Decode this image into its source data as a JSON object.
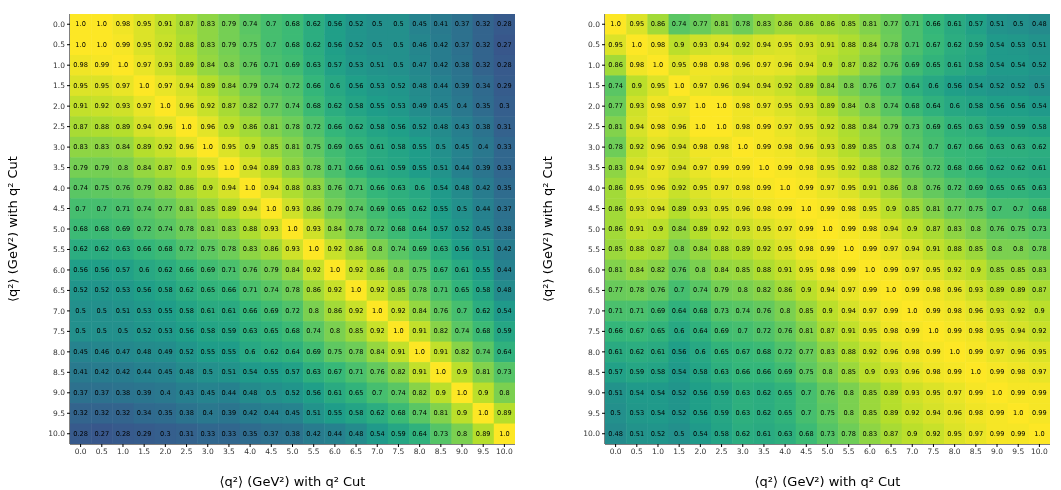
{
  "chart_data": [
    {
      "type": "heatmap",
      "xlabel": "⟨q²⟩ (GeV²) with q² Cut",
      "ylabel": "⟨q²⟩ (GeV²) with q² Cut",
      "data_labels": true,
      "categories": [
        "0.0",
        "0.5",
        "1.0",
        "1.5",
        "2.0",
        "2.5",
        "3.0",
        "3.5",
        "4.0",
        "4.5",
        "5.0",
        "5.5",
        "6.0",
        "6.5",
        "7.0",
        "7.5",
        "8.0",
        "8.5",
        "9.0",
        "9.5",
        "10.0"
      ],
      "y_categories": [
        "0.0",
        "0.5",
        "1.0",
        "1.5",
        "2.0",
        "2.5",
        "3.0",
        "3.5",
        "4.0",
        "4.5",
        "5.0",
        "5.5",
        "6.0",
        "6.5",
        "7.0",
        "7.5",
        "8.0",
        "8.5",
        "9.0",
        "9.5",
        "10.0"
      ],
      "cells": [
        [
          1.0,
          1.0,
          0.98,
          0.95,
          0.91,
          0.87,
          0.83,
          0.79,
          0.74,
          0.7,
          0.68,
          0.62,
          0.56,
          0.52,
          0.5,
          0.5,
          0.45,
          0.41,
          0.37,
          0.32,
          0.28
        ],
        [
          1.0,
          1.0,
          0.99,
          0.95,
          0.92,
          0.88,
          0.83,
          0.79,
          0.75,
          0.7,
          0.68,
          0.62,
          0.56,
          0.52,
          0.5,
          0.5,
          0.46,
          0.42,
          0.37,
          0.32,
          0.27
        ],
        [
          0.98,
          0.99,
          1.0,
          0.97,
          0.93,
          0.89,
          0.84,
          0.8,
          0.76,
          0.71,
          0.69,
          0.63,
          0.57,
          0.53,
          0.51,
          0.5,
          0.47,
          0.42,
          0.38,
          0.32,
          0.28
        ],
        [
          0.95,
          0.95,
          0.97,
          1.0,
          0.97,
          0.94,
          0.89,
          0.84,
          0.79,
          0.74,
          0.72,
          0.66,
          0.6,
          0.56,
          0.53,
          0.52,
          0.48,
          0.44,
          0.39,
          0.34,
          0.29
        ],
        [
          0.91,
          0.92,
          0.93,
          0.97,
          1.0,
          0.96,
          0.92,
          0.87,
          0.82,
          0.77,
          0.74,
          0.68,
          0.62,
          0.58,
          0.55,
          0.53,
          0.49,
          0.45,
          0.4,
          0.35,
          0.3
        ],
        [
          0.87,
          0.88,
          0.89,
          0.94,
          0.96,
          1.0,
          0.96,
          0.9,
          0.86,
          0.81,
          0.78,
          0.72,
          0.66,
          0.62,
          0.58,
          0.56,
          0.52,
          0.48,
          0.43,
          0.38,
          0.31
        ],
        [
          0.83,
          0.83,
          0.84,
          0.89,
          0.92,
          0.96,
          1.0,
          0.95,
          0.9,
          0.85,
          0.81,
          0.75,
          0.69,
          0.65,
          0.61,
          0.58,
          0.55,
          0.5,
          0.45,
          0.4,
          0.33
        ],
        [
          0.79,
          0.79,
          0.8,
          0.84,
          0.87,
          0.9,
          0.95,
          1.0,
          0.94,
          0.89,
          0.83,
          0.78,
          0.71,
          0.66,
          0.61,
          0.59,
          0.55,
          0.51,
          0.44,
          0.39,
          0.33
        ],
        [
          0.74,
          0.75,
          0.76,
          0.79,
          0.82,
          0.86,
          0.9,
          0.94,
          1.0,
          0.94,
          0.88,
          0.83,
          0.76,
          0.71,
          0.66,
          0.63,
          0.6,
          0.54,
          0.48,
          0.42,
          0.35
        ],
        [
          0.7,
          0.7,
          0.71,
          0.74,
          0.77,
          0.81,
          0.85,
          0.89,
          0.94,
          1.0,
          0.93,
          0.86,
          0.79,
          0.74,
          0.69,
          0.65,
          0.62,
          0.55,
          0.5,
          0.44,
          0.37
        ],
        [
          0.68,
          0.68,
          0.69,
          0.72,
          0.74,
          0.78,
          0.81,
          0.83,
          0.88,
          0.93,
          1.0,
          0.93,
          0.84,
          0.78,
          0.72,
          0.68,
          0.64,
          0.57,
          0.52,
          0.45,
          0.38
        ],
        [
          0.62,
          0.62,
          0.63,
          0.66,
          0.68,
          0.72,
          0.75,
          0.78,
          0.83,
          0.86,
          0.93,
          1.0,
          0.92,
          0.86,
          0.8,
          0.74,
          0.69,
          0.63,
          0.56,
          0.51,
          0.42
        ],
        [
          0.56,
          0.56,
          0.57,
          0.6,
          0.62,
          0.66,
          0.69,
          0.71,
          0.76,
          0.79,
          0.84,
          0.92,
          1.0,
          0.92,
          0.86,
          0.8,
          0.75,
          0.67,
          0.61,
          0.55,
          0.44
        ],
        [
          0.52,
          0.52,
          0.53,
          0.56,
          0.58,
          0.62,
          0.65,
          0.66,
          0.71,
          0.74,
          0.78,
          0.86,
          0.92,
          1.0,
          0.92,
          0.85,
          0.78,
          0.71,
          0.65,
          0.58,
          0.48
        ],
        [
          0.5,
          0.5,
          0.51,
          0.53,
          0.55,
          0.58,
          0.61,
          0.61,
          0.66,
          0.69,
          0.72,
          0.8,
          0.86,
          0.92,
          1.0,
          0.92,
          0.84,
          0.76,
          0.7,
          0.62,
          0.54
        ],
        [
          0.5,
          0.5,
          0.5,
          0.52,
          0.53,
          0.56,
          0.58,
          0.59,
          0.63,
          0.65,
          0.68,
          0.74,
          0.8,
          0.85,
          0.92,
          1.0,
          0.91,
          0.82,
          0.74,
          0.68,
          0.59
        ],
        [
          0.45,
          0.46,
          0.47,
          0.48,
          0.49,
          0.52,
          0.55,
          0.55,
          0.6,
          0.62,
          0.64,
          0.69,
          0.75,
          0.78,
          0.84,
          0.91,
          1.0,
          0.91,
          0.82,
          0.74,
          0.64
        ],
        [
          0.41,
          0.42,
          0.42,
          0.44,
          0.45,
          0.48,
          0.5,
          0.51,
          0.54,
          0.55,
          0.57,
          0.63,
          0.67,
          0.71,
          0.76,
          0.82,
          0.91,
          1.0,
          0.9,
          0.81,
          0.73
        ],
        [
          0.37,
          0.37,
          0.38,
          0.39,
          0.4,
          0.43,
          0.45,
          0.44,
          0.48,
          0.5,
          0.52,
          0.56,
          0.61,
          0.65,
          0.7,
          0.74,
          0.82,
          0.9,
          1.0,
          0.9,
          0.8
        ],
        [
          0.32,
          0.32,
          0.32,
          0.34,
          0.35,
          0.38,
          0.4,
          0.39,
          0.42,
          0.44,
          0.45,
          0.51,
          0.55,
          0.58,
          0.62,
          0.68,
          0.74,
          0.81,
          0.9,
          1.0,
          0.89
        ],
        [
          0.28,
          0.27,
          0.28,
          0.29,
          0.3,
          0.31,
          0.33,
          0.33,
          0.35,
          0.37,
          0.38,
          0.42,
          0.44,
          0.48,
          0.54,
          0.59,
          0.64,
          0.73,
          0.8,
          0.89,
          1.0
        ]
      ],
      "cell_labels": [
        [
          "1.0",
          "1.0",
          "0.98",
          "0.95",
          "0.91",
          "0.87",
          "0.83",
          "0.79",
          "0.74",
          "0.7",
          "0.68",
          "0.62",
          "0.56",
          "0.52",
          "0.5",
          "0.5",
          "0.45",
          "0.41",
          "0.37",
          "0.32",
          "0.28"
        ],
        [
          "1.0",
          "1.0",
          "0.99",
          "0.95",
          "0.92",
          "0.88",
          "0.83",
          "0.79",
          "0.75",
          "0.7",
          "0.68",
          "0.62",
          "0.56",
          "0.52",
          "0.5",
          "0.5",
          "0.46",
          "0.42",
          "0.37",
          "0.32",
          "0.27"
        ],
        [
          "0.98",
          "0.99",
          "1.0",
          "0.97",
          "0.93",
          "0.89",
          "0.84",
          "0.8",
          "0.76",
          "0.71",
          "0.69",
          "0.63",
          "0.57",
          "0.53",
          "0.51",
          "0.5",
          "0.47",
          "0.42",
          "0.38",
          "0.32",
          "0.28"
        ],
        [
          "0.95",
          "0.95",
          "0.97",
          "1.0",
          "0.97",
          "0.94",
          "0.89",
          "0.84",
          "0.79",
          "0.74",
          "0.72",
          "0.66",
          "0.6",
          "0.56",
          "0.53",
          "0.52",
          "0.48",
          "0.44",
          "0.39",
          "0.34",
          "0.29"
        ],
        [
          "0.91",
          "0.92",
          "0.93",
          "0.97",
          "1.0",
          "0.96",
          "0.92",
          "0.87",
          "0.82",
          "0.77",
          "0.74",
          "0.68",
          "0.62",
          "0.58",
          "0.55",
          "0.53",
          "0.49",
          "0.45",
          "0.4",
          "0.35",
          "0.3"
        ],
        [
          "0.87",
          "0.88",
          "0.89",
          "0.94",
          "0.96",
          "1.0",
          "0.96",
          "0.9",
          "0.86",
          "0.81",
          "0.78",
          "0.72",
          "0.66",
          "0.62",
          "0.58",
          "0.56",
          "0.52",
          "0.48",
          "0.43",
          "0.38",
          "0.31"
        ],
        [
          "0.83",
          "0.83",
          "0.84",
          "0.89",
          "0.92",
          "0.96",
          "1.0",
          "0.95",
          "0.9",
          "0.85",
          "0.81",
          "0.75",
          "0.69",
          "0.65",
          "0.61",
          "0.58",
          "0.55",
          "0.5",
          "0.45",
          "0.4",
          "0.33"
        ],
        [
          "0.79",
          "0.79",
          "0.8",
          "0.84",
          "0.87",
          "0.9",
          "0.95",
          "1.0",
          "0.94",
          "0.89",
          "0.83",
          "0.78",
          "0.71",
          "0.66",
          "0.61",
          "0.59",
          "0.55",
          "0.51",
          "0.44",
          "0.39",
          "0.33"
        ],
        [
          "0.74",
          "0.75",
          "0.76",
          "0.79",
          "0.82",
          "0.86",
          "0.9",
          "0.94",
          "1.0",
          "0.94",
          "0.88",
          "0.83",
          "0.76",
          "0.71",
          "0.66",
          "0.63",
          "0.6",
          "0.54",
          "0.48",
          "0.42",
          "0.35"
        ],
        [
          "0.7",
          "0.7",
          "0.71",
          "0.74",
          "0.77",
          "0.81",
          "0.85",
          "0.89",
          "0.94",
          "1.0",
          "0.93",
          "0.86",
          "0.79",
          "0.74",
          "0.69",
          "0.65",
          "0.62",
          "0.55",
          "0.5",
          "0.44",
          "0.37"
        ],
        [
          "0.68",
          "0.68",
          "0.69",
          "0.72",
          "0.74",
          "0.78",
          "0.81",
          "0.83",
          "0.88",
          "0.93",
          "1.0",
          "0.93",
          "0.84",
          "0.78",
          "0.72",
          "0.68",
          "0.64",
          "0.57",
          "0.52",
          "0.45",
          "0.38"
        ],
        [
          "0.62",
          "0.62",
          "0.63",
          "0.66",
          "0.68",
          "0.72",
          "0.75",
          "0.78",
          "0.83",
          "0.86",
          "0.93",
          "1.0",
          "0.92",
          "0.86",
          "0.8",
          "0.74",
          "0.69",
          "0.63",
          "0.56",
          "0.51",
          "0.42"
        ],
        [
          "0.56",
          "0.56",
          "0.57",
          "0.6",
          "0.62",
          "0.66",
          "0.69",
          "0.71",
          "0.76",
          "0.79",
          "0.84",
          "0.92",
          "1.0",
          "0.92",
          "0.86",
          "0.8",
          "0.75",
          "0.67",
          "0.61",
          "0.55",
          "0.44"
        ],
        [
          "0.52",
          "0.52",
          "0.53",
          "0.56",
          "0.58",
          "0.62",
          "0.65",
          "0.66",
          "0.71",
          "0.74",
          "0.78",
          "0.86",
          "0.92",
          "1.0",
          "0.92",
          "0.85",
          "0.78",
          "0.71",
          "0.65",
          "0.58",
          "0.48"
        ],
        [
          "0.5",
          "0.5",
          "0.51",
          "0.53",
          "0.55",
          "0.58",
          "0.61",
          "0.61",
          "0.66",
          "0.69",
          "0.72",
          "0.8",
          "0.86",
          "0.92",
          "1.0",
          "0.92",
          "0.84",
          "0.76",
          "0.7",
          "0.62",
          "0.54"
        ],
        [
          "0.5",
          "0.5",
          "0.5",
          "0.52",
          "0.53",
          "0.56",
          "0.58",
          "0.59",
          "0.63",
          "0.65",
          "0.68",
          "0.74",
          "0.8",
          "0.85",
          "0.92",
          "1.0",
          "0.91",
          "0.82",
          "0.74",
          "0.68",
          "0.59"
        ],
        [
          "0.45",
          "0.46",
          "0.47",
          "0.48",
          "0.49",
          "0.52",
          "0.55",
          "0.55",
          "0.6",
          "0.62",
          "0.64",
          "0.69",
          "0.75",
          "0.78",
          "0.84",
          "0.91",
          "1.0",
          "0.91",
          "0.82",
          "0.74",
          "0.64"
        ],
        [
          "0.41",
          "0.42",
          "0.42",
          "0.44",
          "0.45",
          "0.48",
          "0.5",
          "0.51",
          "0.54",
          "0.55",
          "0.57",
          "0.63",
          "0.67",
          "0.71",
          "0.76",
          "0.82",
          "0.91",
          "1.0",
          "0.9",
          "0.81",
          "0.73"
        ],
        [
          "0.37",
          "0.37",
          "0.38",
          "0.39",
          "0.4",
          "0.43",
          "0.45",
          "0.44",
          "0.48",
          "0.5",
          "0.52",
          "0.56",
          "0.61",
          "0.65",
          "0.7",
          "0.74",
          "0.82",
          "0.9",
          "1.0",
          "0.9",
          "0.8"
        ],
        [
          "0.32",
          "0.32",
          "0.32",
          "0.34",
          "0.35",
          "0.38",
          "0.4",
          "0.39",
          "0.42",
          "0.44",
          "0.45",
          "0.51",
          "0.55",
          "0.58",
          "0.62",
          "0.68",
          "0.74",
          "0.81",
          "0.9",
          "1.0",
          "0.89"
        ],
        [
          "0.28",
          "0.27",
          "0.28",
          "0.29",
          "0.3",
          "0.31",
          "0.33",
          "0.33",
          "0.35",
          "0.37",
          "0.38",
          "0.42",
          "0.44",
          "0.48",
          "0.54",
          "0.59",
          "0.64",
          "0.73",
          "0.8",
          "0.89",
          "1.0"
        ]
      ]
    },
    {
      "type": "heatmap",
      "xlabel": "⟨q²⟩ (GeV²) with q² Cut",
      "ylabel": "⟨q²⟩ (GeV²) with q² Cut",
      "data_labels": true,
      "categories": [
        "0.0",
        "0.5",
        "1.0",
        "1.5",
        "2.0",
        "2.5",
        "3.0",
        "3.5",
        "4.0",
        "4.5",
        "5.0",
        "5.5",
        "6.0",
        "6.5",
        "7.0",
        "7.5",
        "8.0",
        "8.5",
        "9.0",
        "9.5",
        "10.0"
      ],
      "y_categories": [
        "0.0",
        "0.5",
        "1.0",
        "1.5",
        "2.0",
        "2.5",
        "3.0",
        "3.5",
        "4.0",
        "4.5",
        "5.0",
        "5.5",
        "6.0",
        "6.5",
        "7.0",
        "7.5",
        "8.0",
        "8.5",
        "9.0",
        "9.5",
        "10.0"
      ],
      "cells": [
        [
          1.0,
          0.95,
          0.86,
          0.74,
          0.77,
          0.81,
          0.78,
          0.83,
          0.86,
          0.86,
          0.86,
          0.85,
          0.81,
          0.77,
          0.71,
          0.66,
          0.61,
          0.57,
          0.51,
          0.5,
          0.48
        ],
        [
          0.95,
          1.0,
          0.98,
          0.9,
          0.93,
          0.94,
          0.92,
          0.94,
          0.95,
          0.93,
          0.91,
          0.88,
          0.84,
          0.78,
          0.71,
          0.67,
          0.62,
          0.59,
          0.54,
          0.53,
          0.51
        ],
        [
          0.86,
          0.98,
          1.0,
          0.95,
          0.98,
          0.98,
          0.96,
          0.97,
          0.96,
          0.94,
          0.9,
          0.87,
          0.82,
          0.76,
          0.69,
          0.65,
          0.61,
          0.58,
          0.54,
          0.54,
          0.52
        ],
        [
          0.74,
          0.9,
          0.95,
          1.0,
          0.97,
          0.96,
          0.94,
          0.94,
          0.92,
          0.89,
          0.84,
          0.8,
          0.76,
          0.7,
          0.64,
          0.6,
          0.56,
          0.54,
          0.52,
          0.52,
          0.5
        ],
        [
          0.77,
          0.93,
          0.98,
          0.97,
          1.0,
          1.0,
          0.98,
          0.97,
          0.95,
          0.93,
          0.89,
          0.84,
          0.8,
          0.74,
          0.68,
          0.64,
          0.6,
          0.58,
          0.56,
          0.56,
          0.54
        ],
        [
          0.81,
          0.94,
          0.98,
          0.96,
          1.0,
          1.0,
          0.98,
          0.99,
          0.97,
          0.95,
          0.92,
          0.88,
          0.84,
          0.79,
          0.73,
          0.69,
          0.65,
          0.63,
          0.59,
          0.59,
          0.58
        ],
        [
          0.78,
          0.92,
          0.96,
          0.94,
          0.98,
          0.98,
          1.0,
          0.99,
          0.98,
          0.96,
          0.93,
          0.89,
          0.85,
          0.8,
          0.74,
          0.7,
          0.67,
          0.66,
          0.63,
          0.63,
          0.62
        ],
        [
          0.83,
          0.94,
          0.97,
          0.94,
          0.97,
          0.99,
          0.99,
          1.0,
          0.99,
          0.98,
          0.95,
          0.92,
          0.88,
          0.82,
          0.76,
          0.72,
          0.68,
          0.66,
          0.62,
          0.62,
          0.61
        ],
        [
          0.86,
          0.95,
          0.96,
          0.92,
          0.95,
          0.97,
          0.98,
          0.99,
          1.0,
          0.99,
          0.97,
          0.95,
          0.91,
          0.86,
          0.8,
          0.76,
          0.72,
          0.69,
          0.65,
          0.65,
          0.63
        ],
        [
          0.86,
          0.93,
          0.94,
          0.89,
          0.93,
          0.95,
          0.96,
          0.98,
          0.99,
          1.0,
          0.99,
          0.98,
          0.95,
          0.9,
          0.85,
          0.81,
          0.77,
          0.75,
          0.7,
          0.7,
          0.68
        ],
        [
          0.86,
          0.91,
          0.9,
          0.84,
          0.89,
          0.92,
          0.93,
          0.95,
          0.97,
          0.99,
          1.0,
          0.99,
          0.98,
          0.94,
          0.9,
          0.87,
          0.83,
          0.8,
          0.76,
          0.75,
          0.73
        ],
        [
          0.85,
          0.88,
          0.87,
          0.8,
          0.84,
          0.88,
          0.89,
          0.92,
          0.95,
          0.98,
          0.99,
          1.0,
          0.99,
          0.97,
          0.94,
          0.91,
          0.88,
          0.85,
          0.8,
          0.8,
          0.78
        ],
        [
          0.81,
          0.84,
          0.82,
          0.76,
          0.8,
          0.84,
          0.85,
          0.88,
          0.91,
          0.95,
          0.98,
          0.99,
          1.0,
          0.99,
          0.97,
          0.95,
          0.92,
          0.9,
          0.85,
          0.85,
          0.83
        ],
        [
          0.77,
          0.78,
          0.76,
          0.7,
          0.74,
          0.79,
          0.8,
          0.82,
          0.86,
          0.9,
          0.94,
          0.97,
          0.99,
          1.0,
          0.99,
          0.98,
          0.96,
          0.93,
          0.89,
          0.89,
          0.87
        ],
        [
          0.71,
          0.71,
          0.69,
          0.64,
          0.68,
          0.73,
          0.74,
          0.76,
          0.8,
          0.85,
          0.9,
          0.94,
          0.97,
          0.99,
          1.0,
          0.99,
          0.98,
          0.96,
          0.93,
          0.92,
          0.9
        ],
        [
          0.66,
          0.67,
          0.65,
          0.6,
          0.64,
          0.69,
          0.7,
          0.72,
          0.76,
          0.81,
          0.87,
          0.91,
          0.95,
          0.98,
          0.99,
          1.0,
          0.99,
          0.98,
          0.95,
          0.94,
          0.92
        ],
        [
          0.61,
          0.62,
          0.61,
          0.56,
          0.6,
          0.65,
          0.67,
          0.68,
          0.72,
          0.77,
          0.83,
          0.88,
          0.92,
          0.96,
          0.98,
          0.99,
          1.0,
          0.99,
          0.97,
          0.96,
          0.95
        ],
        [
          0.57,
          0.59,
          0.58,
          0.54,
          0.58,
          0.63,
          0.66,
          0.66,
          0.69,
          0.75,
          0.8,
          0.85,
          0.9,
          0.93,
          0.96,
          0.98,
          0.99,
          1.0,
          0.99,
          0.98,
          0.97
        ],
        [
          0.51,
          0.54,
          0.54,
          0.52,
          0.56,
          0.59,
          0.63,
          0.62,
          0.65,
          0.7,
          0.76,
          0.8,
          0.85,
          0.89,
          0.93,
          0.95,
          0.97,
          0.99,
          1.0,
          0.99,
          0.99
        ],
        [
          0.5,
          0.53,
          0.54,
          0.52,
          0.56,
          0.59,
          0.63,
          0.62,
          0.65,
          0.7,
          0.75,
          0.8,
          0.85,
          0.89,
          0.92,
          0.94,
          0.96,
          0.98,
          0.99,
          1.0,
          0.99
        ],
        [
          0.48,
          0.51,
          0.52,
          0.5,
          0.54,
          0.58,
          0.62,
          0.61,
          0.63,
          0.68,
          0.73,
          0.78,
          0.83,
          0.87,
          0.9,
          0.92,
          0.95,
          0.97,
          0.99,
          0.99,
          1.0
        ]
      ],
      "cell_labels": [
        [
          "1.0",
          "0.95",
          "0.86",
          "0.74",
          "0.77",
          "0.81",
          "0.78",
          "0.83",
          "0.86",
          "0.86",
          "0.86",
          "0.85",
          "0.81",
          "0.77",
          "0.71",
          "0.66",
          "0.61",
          "0.57",
          "0.51",
          "0.5",
          "0.48"
        ],
        [
          "0.95",
          "1.0",
          "0.98",
          "0.9",
          "0.93",
          "0.94",
          "0.92",
          "0.94",
          "0.95",
          "0.93",
          "0.91",
          "0.88",
          "0.84",
          "0.78",
          "0.71",
          "0.67",
          "0.62",
          "0.59",
          "0.54",
          "0.53",
          "0.51"
        ],
        [
          "0.86",
          "0.98",
          "1.0",
          "0.95",
          "0.98",
          "0.98",
          "0.96",
          "0.97",
          "0.96",
          "0.94",
          "0.9",
          "0.87",
          "0.82",
          "0.76",
          "0.69",
          "0.65",
          "0.61",
          "0.58",
          "0.54",
          "0.54",
          "0.52"
        ],
        [
          "0.74",
          "0.9",
          "0.95",
          "1.0",
          "0.97",
          "0.96",
          "0.94",
          "0.94",
          "0.92",
          "0.89",
          "0.84",
          "0.8",
          "0.76",
          "0.7",
          "0.64",
          "0.6",
          "0.56",
          "0.54",
          "0.52",
          "0.52",
          "0.5"
        ],
        [
          "0.77",
          "0.93",
          "0.98",
          "0.97",
          "1.0",
          "1.0",
          "0.98",
          "0.97",
          "0.95",
          "0.93",
          "0.89",
          "0.84",
          "0.8",
          "0.74",
          "0.68",
          "0.64",
          "0.6",
          "0.58",
          "0.56",
          "0.56",
          "0.54"
        ],
        [
          "0.81",
          "0.94",
          "0.98",
          "0.96",
          "1.0",
          "1.0",
          "0.98",
          "0.99",
          "0.97",
          "0.95",
          "0.92",
          "0.88",
          "0.84",
          "0.79",
          "0.73",
          "0.69",
          "0.65",
          "0.63",
          "0.59",
          "0.59",
          "0.58"
        ],
        [
          "0.78",
          "0.92",
          "0.96",
          "0.94",
          "0.98",
          "0.98",
          "1.0",
          "0.99",
          "0.98",
          "0.96",
          "0.93",
          "0.89",
          "0.85",
          "0.8",
          "0.74",
          "0.7",
          "0.67",
          "0.66",
          "0.63",
          "0.63",
          "0.62"
        ],
        [
          "0.83",
          "0.94",
          "0.97",
          "0.94",
          "0.97",
          "0.99",
          "0.99",
          "1.0",
          "0.99",
          "0.98",
          "0.95",
          "0.92",
          "0.88",
          "0.82",
          "0.76",
          "0.72",
          "0.68",
          "0.66",
          "0.62",
          "0.62",
          "0.61"
        ],
        [
          "0.86",
          "0.95",
          "0.96",
          "0.92",
          "0.95",
          "0.97",
          "0.98",
          "0.99",
          "1.0",
          "0.99",
          "0.97",
          "0.95",
          "0.91",
          "0.86",
          "0.8",
          "0.76",
          "0.72",
          "0.69",
          "0.65",
          "0.65",
          "0.63"
        ],
        [
          "0.86",
          "0.93",
          "0.94",
          "0.89",
          "0.93",
          "0.95",
          "0.96",
          "0.98",
          "0.99",
          "1.0",
          "0.99",
          "0.98",
          "0.95",
          "0.9",
          "0.85",
          "0.81",
          "0.77",
          "0.75",
          "0.7",
          "0.7",
          "0.68"
        ],
        [
          "0.86",
          "0.91",
          "0.9",
          "0.84",
          "0.89",
          "0.92",
          "0.93",
          "0.95",
          "0.97",
          "0.99",
          "1.0",
          "0.99",
          "0.98",
          "0.94",
          "0.9",
          "0.87",
          "0.83",
          "0.8",
          "0.76",
          "0.75",
          "0.73"
        ],
        [
          "0.85",
          "0.88",
          "0.87",
          "0.8",
          "0.84",
          "0.88",
          "0.89",
          "0.92",
          "0.95",
          "0.98",
          "0.99",
          "1.0",
          "0.99",
          "0.97",
          "0.94",
          "0.91",
          "0.88",
          "0.85",
          "0.8",
          "0.8",
          "0.78"
        ],
        [
          "0.81",
          "0.84",
          "0.82",
          "0.76",
          "0.8",
          "0.84",
          "0.85",
          "0.88",
          "0.91",
          "0.95",
          "0.98",
          "0.99",
          "1.0",
          "0.99",
          "0.97",
          "0.95",
          "0.92",
          "0.9",
          "0.85",
          "0.85",
          "0.83"
        ],
        [
          "0.77",
          "0.78",
          "0.76",
          "0.7",
          "0.74",
          "0.79",
          "0.8",
          "0.82",
          "0.86",
          "0.9",
          "0.94",
          "0.97",
          "0.99",
          "1.0",
          "0.99",
          "0.98",
          "0.96",
          "0.93",
          "0.89",
          "0.89",
          "0.87"
        ],
        [
          "0.71",
          "0.71",
          "0.69",
          "0.64",
          "0.68",
          "0.73",
          "0.74",
          "0.76",
          "0.8",
          "0.85",
          "0.9",
          "0.94",
          "0.97",
          "0.99",
          "1.0",
          "0.99",
          "0.98",
          "0.96",
          "0.93",
          "0.92",
          "0.9"
        ],
        [
          "0.66",
          "0.67",
          "0.65",
          "0.6",
          "0.64",
          "0.69",
          "0.7",
          "0.72",
          "0.76",
          "0.81",
          "0.87",
          "0.91",
          "0.95",
          "0.98",
          "0.99",
          "1.0",
          "0.99",
          "0.98",
          "0.95",
          "0.94",
          "0.92"
        ],
        [
          "0.61",
          "0.62",
          "0.61",
          "0.56",
          "0.6",
          "0.65",
          "0.67",
          "0.68",
          "0.72",
          "0.77",
          "0.83",
          "0.88",
          "0.92",
          "0.96",
          "0.98",
          "0.99",
          "1.0",
          "0.99",
          "0.97",
          "0.96",
          "0.95"
        ],
        [
          "0.57",
          "0.59",
          "0.58",
          "0.54",
          "0.58",
          "0.63",
          "0.66",
          "0.66",
          "0.69",
          "0.75",
          "0.8",
          "0.85",
          "0.9",
          "0.93",
          "0.96",
          "0.98",
          "0.99",
          "1.0",
          "0.99",
          "0.98",
          "0.97"
        ],
        [
          "0.51",
          "0.54",
          "0.54",
          "0.52",
          "0.56",
          "0.59",
          "0.63",
          "0.62",
          "0.65",
          "0.7",
          "0.76",
          "0.8",
          "0.85",
          "0.89",
          "0.93",
          "0.95",
          "0.97",
          "0.99",
          "1.0",
          "0.99",
          "0.99"
        ],
        [
          "0.5",
          "0.53",
          "0.54",
          "0.52",
          "0.56",
          "0.59",
          "0.63",
          "0.62",
          "0.65",
          "0.7",
          "0.75",
          "0.8",
          "0.85",
          "0.89",
          "0.92",
          "0.94",
          "0.96",
          "0.98",
          "0.99",
          "1.0",
          "0.99"
        ],
        [
          "0.48",
          "0.51",
          "0.52",
          "0.5",
          "0.54",
          "0.58",
          "0.62",
          "0.61",
          "0.63",
          "0.68",
          "0.73",
          "0.78",
          "0.83",
          "0.87",
          "0.9",
          "0.92",
          "0.95",
          "0.97",
          "0.99",
          "0.99",
          "1.0"
        ]
      ]
    }
  ]
}
